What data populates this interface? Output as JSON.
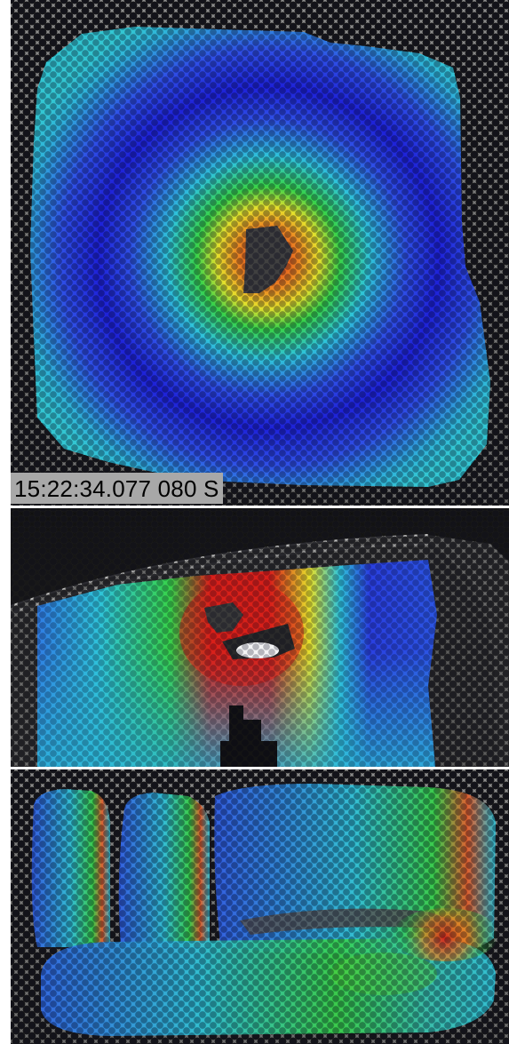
{
  "panels": [
    {
      "id": "top-view",
      "timestamp": "15:22:34.077 080 S"
    },
    {
      "id": "side-view"
    },
    {
      "id": "bottom-view"
    }
  ],
  "colormap": {
    "deep_blue": "#1e22d8",
    "blue": "#2f4fe6",
    "cyan": "#2fc4d9",
    "green": "#37d24a",
    "yellow": "#e6e02c",
    "orange": "#ec8a22",
    "red": "#d8201a"
  }
}
